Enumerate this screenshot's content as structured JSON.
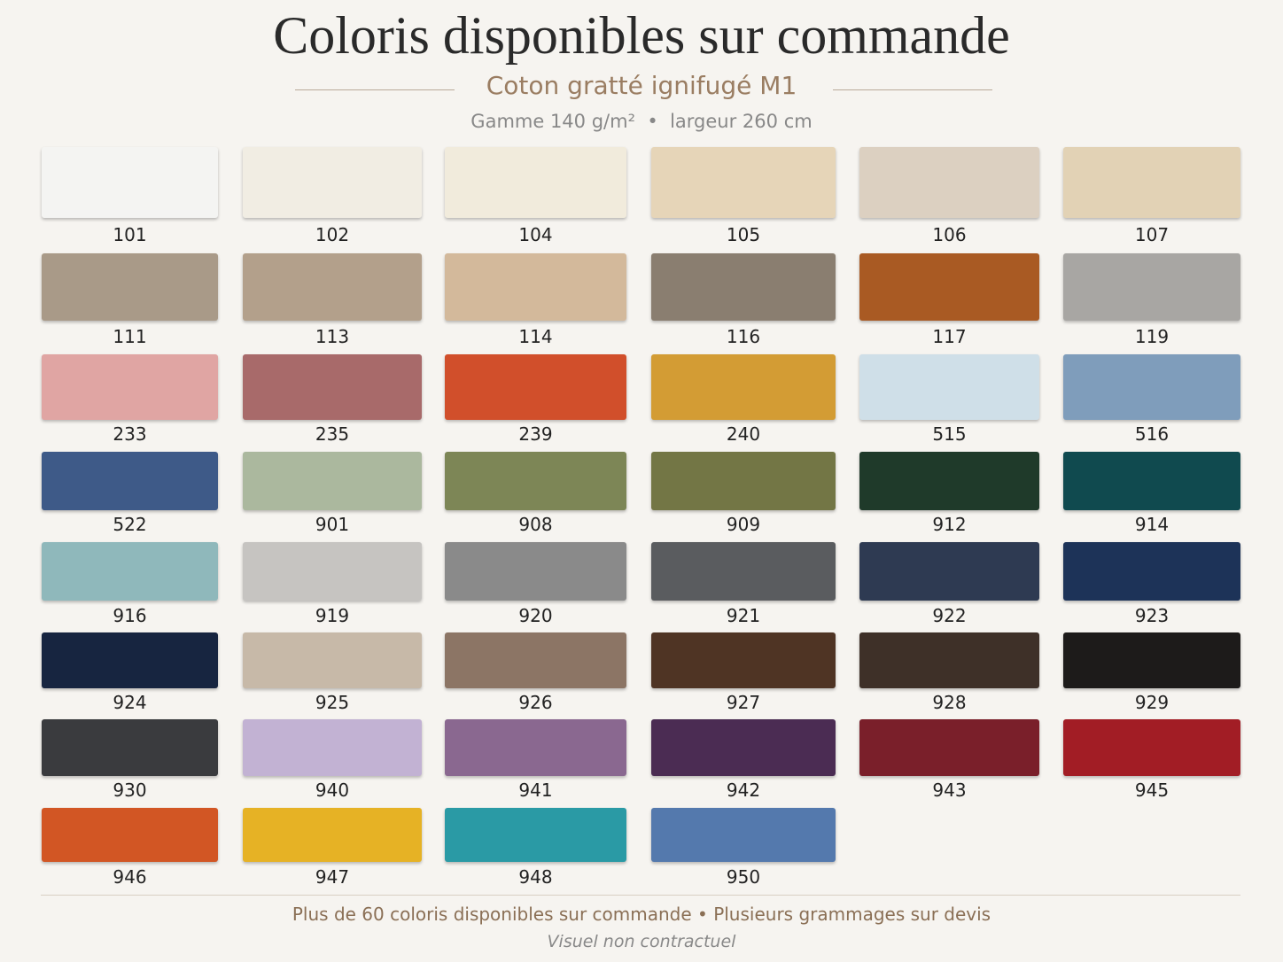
{
  "header": {
    "title": "Coloris disponibles sur commande",
    "subtitle": "Coton gratté ignifugé M1",
    "specs": [
      "Gamme 140 g/m²",
      "largeur 260 cm"
    ]
  },
  "swatches": [
    {
      "code": "101",
      "color": "#f4f4f2"
    },
    {
      "code": "102",
      "color": "#f1ede3"
    },
    {
      "code": "104",
      "color": "#f1ebdc"
    },
    {
      "code": "105",
      "color": "#e6d5b8"
    },
    {
      "code": "106",
      "color": "#dcd0c1"
    },
    {
      "code": "107",
      "color": "#e2d2b5"
    },
    {
      "code": "111",
      "color": "#a99a88"
    },
    {
      "code": "113",
      "color": "#b3a08b"
    },
    {
      "code": "114",
      "color": "#d3b99b"
    },
    {
      "code": "116",
      "color": "#8a7e70"
    },
    {
      "code": "117",
      "color": "#a95a23"
    },
    {
      "code": "119",
      "color": "#a8a6a3"
    },
    {
      "code": "233",
      "color": "#e0a5a3"
    },
    {
      "code": "235",
      "color": "#a86a6a"
    },
    {
      "code": "239",
      "color": "#d14f2b"
    },
    {
      "code": "240",
      "color": "#d39c34"
    },
    {
      "code": "515",
      "color": "#cfdfe8"
    },
    {
      "code": "516",
      "color": "#7f9dbb"
    },
    {
      "code": "522",
      "color": "#3e5a88"
    },
    {
      "code": "901",
      "color": "#abb89e"
    },
    {
      "code": "908",
      "color": "#7d8656"
    },
    {
      "code": "909",
      "color": "#737645"
    },
    {
      "code": "912",
      "color": "#1f3a2a"
    },
    {
      "code": "914",
      "color": "#104a4f"
    },
    {
      "code": "916",
      "color": "#8fb8bb"
    },
    {
      "code": "919",
      "color": "#c6c4c1"
    },
    {
      "code": "920",
      "color": "#8a8a8a"
    },
    {
      "code": "921",
      "color": "#5a5c5f"
    },
    {
      "code": "922",
      "color": "#2e3a52"
    },
    {
      "code": "923",
      "color": "#1d3358"
    },
    {
      "code": "924",
      "color": "#172540"
    },
    {
      "code": "925",
      "color": "#c7b9a8"
    },
    {
      "code": "926",
      "color": "#8c7565"
    },
    {
      "code": "927",
      "color": "#4f3424"
    },
    {
      "code": "928",
      "color": "#3e3028"
    },
    {
      "code": "929",
      "color": "#1d1b1a"
    },
    {
      "code": "930",
      "color": "#3a3b3e"
    },
    {
      "code": "940",
      "color": "#c2b2d3"
    },
    {
      "code": "941",
      "color": "#8a6890"
    },
    {
      "code": "942",
      "color": "#4b2c53"
    },
    {
      "code": "943",
      "color": "#7a1f2a"
    },
    {
      "code": "945",
      "color": "#a21d25"
    },
    {
      "code": "946",
      "color": "#d25624"
    },
    {
      "code": "947",
      "color": "#e6b225"
    },
    {
      "code": "948",
      "color": "#2a9aa5"
    },
    {
      "code": "950",
      "color": "#5479ad"
    }
  ],
  "footer": {
    "notes": [
      "Plus de 60 coloris disponibles sur commande",
      "Plusieurs grammages sur devis"
    ],
    "disclaimer": "Visuel non contractuel"
  }
}
